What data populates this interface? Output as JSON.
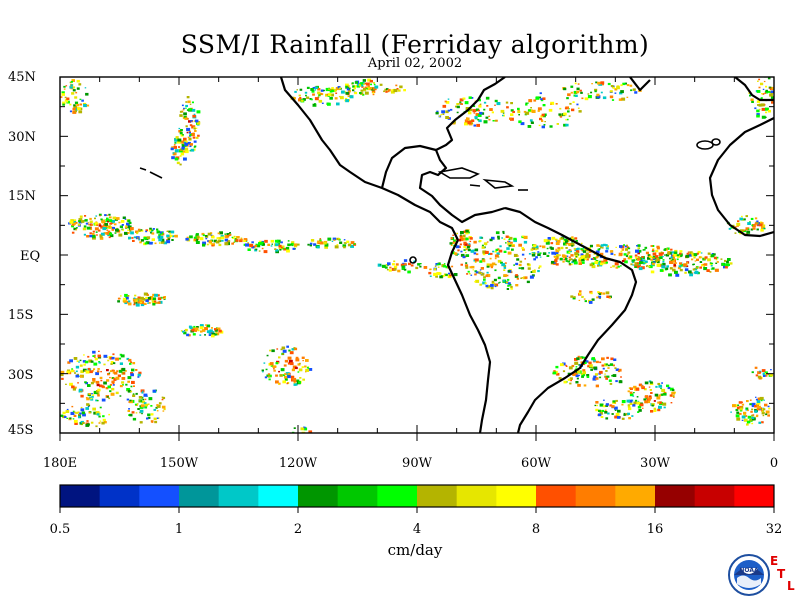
{
  "title": "SSM/I Rainfall (Ferriday algorithm)",
  "subtitle": "April 02, 2002",
  "lat_labels": [
    "45N",
    "30N",
    "15N",
    "EQ",
    "15S",
    "30S",
    "45S"
  ],
  "lon_labels": [
    "180E",
    "150W",
    "120W",
    "90W",
    "60W",
    "30W",
    "0"
  ],
  "colorbar": {
    "unit": "cm/day",
    "tick_labels": [
      "0.5",
      "1",
      "2",
      "4",
      "8",
      "16",
      "32"
    ],
    "colors": [
      "#001480",
      "#0032c8",
      "#1450ff",
      "#00969a",
      "#00c8c8",
      "#00ffff",
      "#009600",
      "#00c800",
      "#00ff00",
      "#b4b400",
      "#e6e600",
      "#ffff00",
      "#ff5000",
      "#ff7d00",
      "#ffaa00",
      "#960000",
      "#c80000",
      "#ff0000"
    ]
  },
  "logo": {
    "icon": "noaa-logo-icon",
    "text": "NOAA"
  },
  "etl": {
    "e": "E",
    "t": "T",
    "l": "L"
  }
}
